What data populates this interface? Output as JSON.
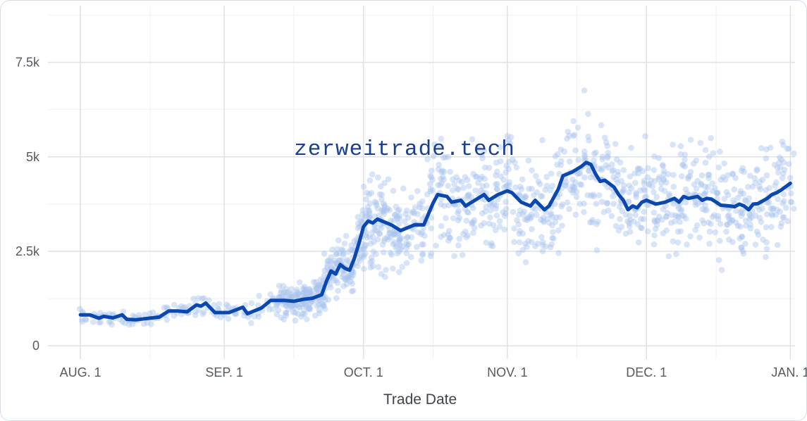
{
  "chart_data": {
    "type": "scatter",
    "xlabel": "Trade Date",
    "ylabel": "",
    "x_domain": [
      "2023-07-25",
      "2024-01-02"
    ],
    "ylim": [
      -350,
      9000
    ],
    "x_ticks": [
      {
        "date": "2023-08-01",
        "label": "AUG. 1"
      },
      {
        "date": "2023-09-01",
        "label": "SEP. 1"
      },
      {
        "date": "2023-10-01",
        "label": "OCT. 1"
      },
      {
        "date": "2023-11-01",
        "label": "NOV. 1"
      },
      {
        "date": "2023-12-01",
        "label": "DEC. 1"
      },
      {
        "date": "2024-01-01",
        "label": "JAN. 1"
      }
    ],
    "x_minor_dates": [
      "2023-08-16",
      "2023-09-16",
      "2023-10-16",
      "2023-11-16",
      "2023-12-16"
    ],
    "y_ticks": [
      {
        "value": 0,
        "label": "0"
      },
      {
        "value": 2500,
        "label": "2.5k"
      },
      {
        "value": 5000,
        "label": "5k"
      },
      {
        "value": 7500,
        "label": "7.5k"
      }
    ],
    "y_minor": [
      1250,
      3750,
      6250,
      8750
    ],
    "grid": true,
    "point_color": "#a8c4ee",
    "line_color": "#0a47b0",
    "series": [
      {
        "type": "line",
        "points": [
          [
            "2023-08-01",
            820
          ],
          [
            "2023-08-03",
            820
          ],
          [
            "2023-08-05",
            730
          ],
          [
            "2023-08-06",
            780
          ],
          [
            "2023-08-08",
            740
          ],
          [
            "2023-08-10",
            820
          ],
          [
            "2023-08-11",
            700
          ],
          [
            "2023-08-13",
            690
          ],
          [
            "2023-08-15",
            720
          ],
          [
            "2023-08-18",
            760
          ],
          [
            "2023-08-20",
            920
          ],
          [
            "2023-08-22",
            920
          ],
          [
            "2023-08-24",
            900
          ],
          [
            "2023-08-26",
            1080
          ],
          [
            "2023-08-27",
            1050
          ],
          [
            "2023-08-28",
            1130
          ],
          [
            "2023-08-30",
            880
          ],
          [
            "2023-09-02",
            880
          ],
          [
            "2023-09-05",
            1020
          ],
          [
            "2023-09-06",
            850
          ],
          [
            "2023-09-09",
            1000
          ],
          [
            "2023-09-11",
            1200
          ],
          [
            "2023-09-14",
            1200
          ],
          [
            "2023-09-16",
            1180
          ],
          [
            "2023-09-18",
            1230
          ],
          [
            "2023-09-20",
            1260
          ],
          [
            "2023-09-22",
            1350
          ],
          [
            "2023-09-23",
            1700
          ],
          [
            "2023-09-24",
            1980
          ],
          [
            "2023-09-25",
            1900
          ],
          [
            "2023-09-26",
            2150
          ],
          [
            "2023-09-27",
            2050
          ],
          [
            "2023-09-28",
            2000
          ],
          [
            "2023-09-29",
            2300
          ],
          [
            "2023-09-30",
            2700
          ],
          [
            "2023-10-01",
            3150
          ],
          [
            "2023-10-02",
            3300
          ],
          [
            "2023-10-03",
            3250
          ],
          [
            "2023-10-04",
            3350
          ],
          [
            "2023-10-06",
            3250
          ],
          [
            "2023-10-07",
            3200
          ],
          [
            "2023-10-09",
            3050
          ],
          [
            "2023-10-10",
            3100
          ],
          [
            "2023-10-12",
            3200
          ],
          [
            "2023-10-14",
            3200
          ],
          [
            "2023-10-16",
            3780
          ],
          [
            "2023-10-17",
            4000
          ],
          [
            "2023-10-19",
            3950
          ],
          [
            "2023-10-20",
            3800
          ],
          [
            "2023-10-22",
            3850
          ],
          [
            "2023-10-23",
            3700
          ],
          [
            "2023-10-25",
            3850
          ],
          [
            "2023-10-27",
            4000
          ],
          [
            "2023-10-28",
            3850
          ],
          [
            "2023-10-30",
            4000
          ],
          [
            "2023-11-01",
            4100
          ],
          [
            "2023-11-02",
            4050
          ],
          [
            "2023-11-04",
            3800
          ],
          [
            "2023-11-05",
            3750
          ],
          [
            "2023-11-06",
            3700
          ],
          [
            "2023-11-07",
            3850
          ],
          [
            "2023-11-09",
            3600
          ],
          [
            "2023-11-10",
            3700
          ],
          [
            "2023-11-12",
            4150
          ],
          [
            "2023-11-13",
            4500
          ],
          [
            "2023-11-14",
            4550
          ],
          [
            "2023-11-15",
            4600
          ],
          [
            "2023-11-17",
            4750
          ],
          [
            "2023-11-18",
            4850
          ],
          [
            "2023-11-19",
            4800
          ],
          [
            "2023-11-20",
            4550
          ],
          [
            "2023-11-21",
            4350
          ],
          [
            "2023-11-22",
            4380
          ],
          [
            "2023-11-24",
            4200
          ],
          [
            "2023-11-25",
            4000
          ],
          [
            "2023-11-26",
            3850
          ],
          [
            "2023-11-27",
            3600
          ],
          [
            "2023-11-28",
            3700
          ],
          [
            "2023-11-29",
            3650
          ],
          [
            "2023-11-30",
            3800
          ],
          [
            "2023-12-01",
            3850
          ],
          [
            "2023-12-02",
            3800
          ],
          [
            "2023-12-03",
            3750
          ],
          [
            "2023-12-05",
            3800
          ],
          [
            "2023-12-07",
            3900
          ],
          [
            "2023-12-08",
            3800
          ],
          [
            "2023-12-09",
            3950
          ],
          [
            "2023-12-10",
            3900
          ],
          [
            "2023-12-12",
            3950
          ],
          [
            "2023-12-13",
            3850
          ],
          [
            "2023-12-14",
            3900
          ],
          [
            "2023-12-15",
            3880
          ],
          [
            "2023-12-16",
            3800
          ],
          [
            "2023-12-17",
            3720
          ],
          [
            "2023-12-19",
            3700
          ],
          [
            "2023-12-20",
            3680
          ],
          [
            "2023-12-21",
            3750
          ],
          [
            "2023-12-22",
            3700
          ],
          [
            "2023-12-23",
            3600
          ],
          [
            "2023-12-24",
            3750
          ],
          [
            "2023-12-25",
            3760
          ],
          [
            "2023-12-27",
            3900
          ],
          [
            "2023-12-28",
            4000
          ],
          [
            "2023-12-29",
            4050
          ],
          [
            "2023-12-30",
            4120
          ],
          [
            "2024-01-01",
            4300
          ]
        ]
      }
    ]
  },
  "watermark": "zerweitrade.tech"
}
